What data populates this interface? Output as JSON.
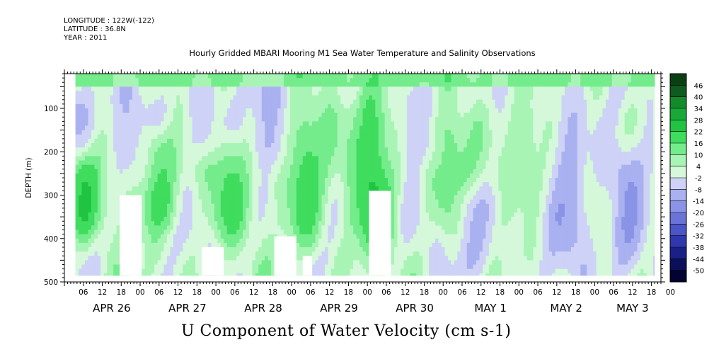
{
  "header": {
    "longitude": "LONGITUDE : 122W(-122)",
    "latitude": "LATITUDE : 36.8N",
    "year": "YEAR : 2011"
  },
  "chart_data": {
    "type": "heatmap",
    "title": "Hourly Gridded MBARI Mooring M1 Sea Water Temperature and Salinity Observations",
    "variable_title": "U Component of Water Velocity (cm s-1)",
    "ylabel": "DEPTH (m)",
    "xlabel": "",
    "y_axis": {
      "range": [
        500,
        20
      ],
      "ticks": [
        100,
        200,
        300,
        400,
        500
      ],
      "inverted": true
    },
    "x_axis": {
      "range_hours": [
        0,
        189
      ],
      "hour_labels": [
        "06",
        "12",
        "18",
        "00",
        "06",
        "12",
        "18",
        "00",
        "06",
        "12",
        "18",
        "00",
        "06",
        "12",
        "18",
        "00",
        "06",
        "12",
        "18",
        "00",
        "06",
        "12",
        "18",
        "00",
        "06",
        "12",
        "18",
        "00",
        "06",
        "12",
        "18",
        "00"
      ],
      "hour_label_positions_h": [
        6,
        12,
        18,
        24,
        30,
        36,
        42,
        48,
        54,
        60,
        66,
        72,
        78,
        84,
        90,
        96,
        102,
        108,
        114,
        120,
        126,
        132,
        138,
        144,
        150,
        156,
        162,
        168,
        174,
        180,
        186,
        192
      ],
      "day_labels": [
        "APR 26",
        "APR 27",
        "APR 28",
        "APR 29",
        "APR 30",
        "MAY  1",
        "MAY  2",
        "MAY  3"
      ],
      "day_label_positions_h": [
        15,
        39,
        63,
        87,
        111,
        135,
        159,
        180
      ]
    },
    "data_extent": {
      "hour_start": 3.5,
      "hour_end": 187,
      "depth_top": 20,
      "depth_bottom": 485
    },
    "colorbar": {
      "levels": [
        46,
        40,
        34,
        28,
        22,
        16,
        10,
        4,
        -2,
        -8,
        -14,
        -20,
        -26,
        -32,
        -38,
        -44,
        -50
      ],
      "colors": [
        "#0a3f14",
        "#0f5a1e",
        "#138a2c",
        "#18a838",
        "#20c442",
        "#3fdc5e",
        "#74ec8c",
        "#a8f4b5",
        "#d4f8d9",
        "#cdd2f6",
        "#a9b1f0",
        "#8a93e6",
        "#6a74d8",
        "#4a55c8",
        "#2f38ad",
        "#1a2088",
        "#0b0f5a",
        "#020330"
      ]
    },
    "features": [
      {
        "kind": "strong_positive_band",
        "center_hour": 6,
        "depth": [
          180,
          380
        ],
        "value": 20
      },
      {
        "kind": "strong_positive_band",
        "center_hour": 30,
        "depth": [
          160,
          360
        ],
        "value": 18
      },
      {
        "kind": "strong_positive_band",
        "center_hour": 52,
        "depth": [
          180,
          380
        ],
        "value": 16
      },
      {
        "kind": "strong_positive_band",
        "center_hour": 76,
        "depth": [
          120,
          400
        ],
        "value": 20
      },
      {
        "kind": "strong_positive_band",
        "center_hour": 98,
        "depth": [
          60,
          430
        ],
        "value": 22
      },
      {
        "kind": "strong_positive_band",
        "center_hour": 122,
        "depth": [
          120,
          360
        ],
        "value": 14
      },
      {
        "kind": "strong_positive_band",
        "center_hour": 146,
        "depth": [
          100,
          300
        ],
        "value": 10
      },
      {
        "kind": "negative_patch",
        "center_hour": 4,
        "depth": [
          60,
          200
        ],
        "value": -10
      },
      {
        "kind": "negative_patch",
        "center_hour": 20,
        "depth": [
          60,
          260
        ],
        "value": -8
      },
      {
        "kind": "negative_patch",
        "center_hour": 44,
        "depth": [
          40,
          200
        ],
        "value": -8
      },
      {
        "kind": "negative_patch",
        "center_hour": 65,
        "depth": [
          40,
          220
        ],
        "value": -10
      },
      {
        "kind": "negative_patch",
        "center_hour": 112,
        "depth": [
          60,
          220
        ],
        "value": -8
      },
      {
        "kind": "negative_patch",
        "center_hour": 130,
        "depth": [
          300,
          480
        ],
        "value": -10
      },
      {
        "kind": "negative_patch",
        "center_hour": 160,
        "depth": [
          60,
          480
        ],
        "value": -12
      },
      {
        "kind": "negative_patch",
        "center_hour": 178,
        "depth": [
          200,
          480
        ],
        "value": -14
      },
      {
        "kind": "surface_positive_layer",
        "depth": [
          20,
          50
        ],
        "value": 16
      }
    ],
    "missing_regions": [
      {
        "hour": [
          17.5,
          24.5
        ],
        "depth": [
          300,
          485
        ]
      },
      {
        "hour": [
          43.5,
          50.5
        ],
        "depth": [
          420,
          485
        ]
      },
      {
        "hour": [
          66.5,
          73.5
        ],
        "depth": [
          395,
          485
        ]
      },
      {
        "hour": [
          75.5,
          78.5
        ],
        "depth": [
          440,
          485
        ]
      },
      {
        "hour": [
          96.5,
          103.5
        ],
        "depth": [
          290,
          485
        ]
      }
    ]
  }
}
